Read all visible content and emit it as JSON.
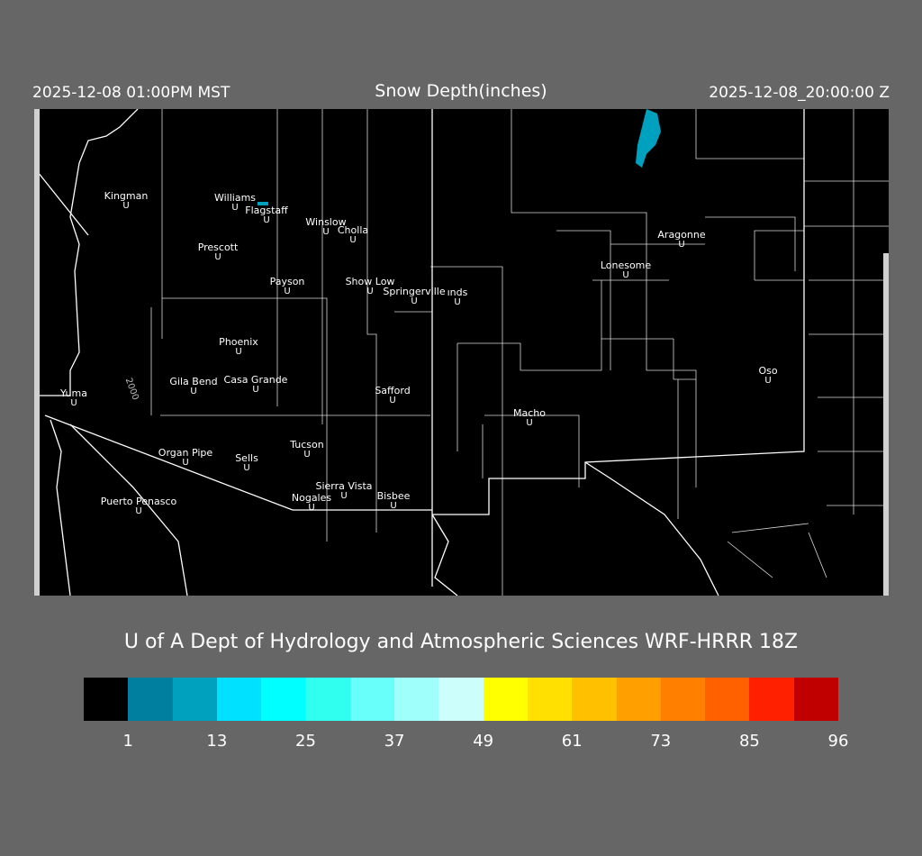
{
  "header": {
    "local_time": "2025-12-08 01:00PM MST",
    "title": "Snow Depth(inches)",
    "valid_time": "2025-12-08_20:00:00 Z"
  },
  "map": {
    "cities": [
      "Kingman",
      "Williams",
      "Flagstaff",
      "Winslow",
      "Cholla",
      "Prescott",
      "Payson",
      "Show Low",
      "Springerville",
      "ınds",
      "Aragonne",
      "Lonesome",
      "Phoenix",
      "Oso",
      "Gila Bend",
      "Casa Grande",
      "Yuma",
      "Safford",
      "Macho",
      "Organ Pipe",
      "Sells",
      "Tucson",
      "Sierra Vista",
      "Nogales",
      "Bisbee",
      "Puerto Penasco"
    ],
    "marker_symbol": "U",
    "contour_label": "2000"
  },
  "credit": "U of A Dept of Hydrology and Atmospheric Sciences WRF-HRRR 18Z",
  "colorbar": {
    "colors": [
      "#000000",
      "#007f9f",
      "#00a0bf",
      "#00e0ff",
      "#00ffff",
      "#30fff0",
      "#68fffa",
      "#9ffffa",
      "#ccfffc",
      "#ffff00",
      "#ffe000",
      "#ffc000",
      "#ffa000",
      "#ff8000",
      "#ff6000",
      "#ff2000",
      "#c00000",
      "#800000"
    ],
    "labels": [
      "1",
      "13",
      "25",
      "37",
      "49",
      "61",
      "73",
      "85",
      "96"
    ]
  }
}
